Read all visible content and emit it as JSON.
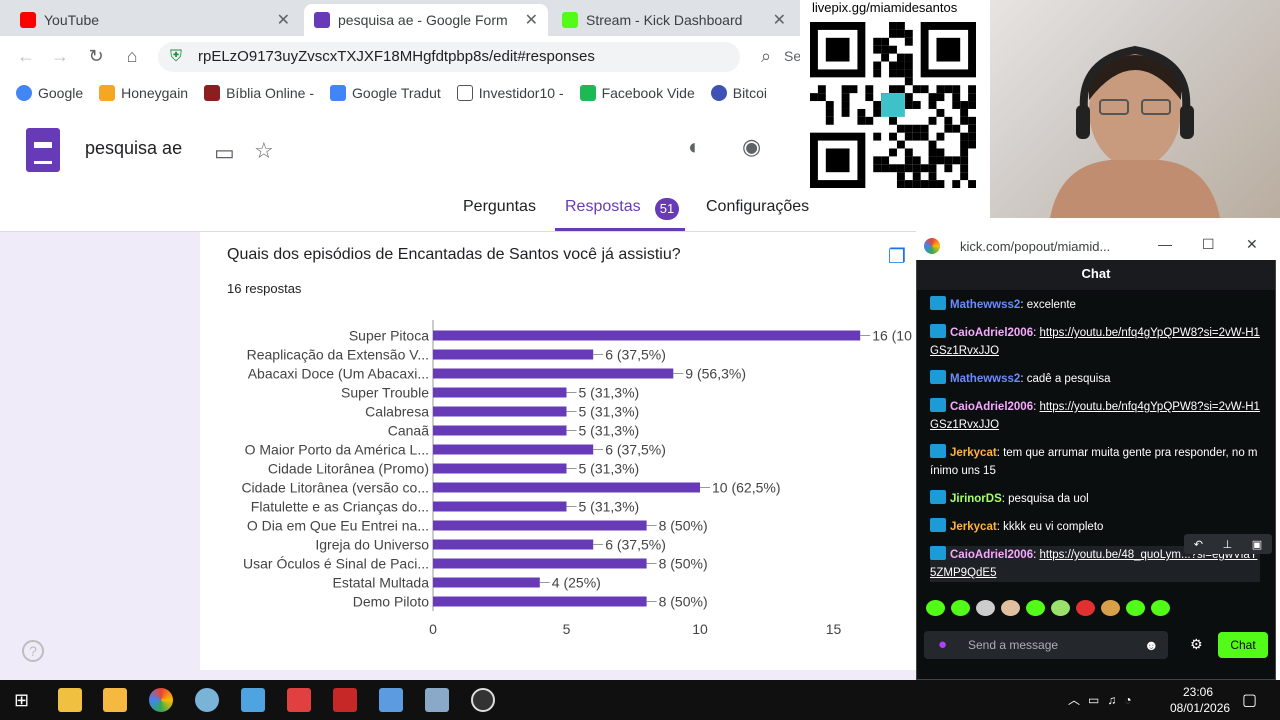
{
  "browser": {
    "tabs": [
      {
        "label": "YouTube",
        "color": "#ff0000"
      },
      {
        "label": "pesquisa ae - Google Form",
        "color": "#673ab7"
      },
      {
        "label": "Stream - Kick Dashboard",
        "color": "#53fc18"
      }
    ],
    "address": "rpELzO9173uyZvscxTXJXF18MHgfdtpbp8s/edit#responses",
    "search_stub": "Se",
    "bookmarks": [
      "Google",
      "Honeygain",
      "Bíblia Online -",
      "Google Tradut",
      "Investidor10 -",
      "Facebook Vide",
      "Bitcoi"
    ]
  },
  "form": {
    "title": "pesquisa ae",
    "tabs": {
      "questions": "Perguntas",
      "responses": "Respostas",
      "responses_count": "51",
      "settings": "Configurações"
    },
    "question": "Quais dos episódios de Encantadas de Santos você já assistiu?",
    "response_count": "16 respostas"
  },
  "chart_data": {
    "type": "bar",
    "orientation": "horizontal",
    "categories": [
      "Super Pitoca",
      "Reaplicação da Extensão V...",
      "Abacaxi Doce (Um Abacaxi...",
      "Super Trouble",
      "Calabresa",
      "Canaã",
      "O Maior Porto da América L...",
      "Cidade Litorânea (Promo)",
      "Cidade Litorânea (versão co...",
      "Flatulette e as Crianças do...",
      "O Dia em Que Eu Entrei na...",
      "Igreja do Universo",
      "Usar Óculos é Sinal de Paci...",
      "Estatal Multada",
      "Demo Piloto"
    ],
    "values": [
      16,
      6,
      9,
      5,
      5,
      5,
      6,
      5,
      10,
      5,
      8,
      6,
      8,
      4,
      8
    ],
    "labels": [
      "16 (10",
      "6 (37,5%)",
      "9 (56,3%)",
      "5 (31,3%)",
      "5 (31,3%)",
      "5 (31,3%)",
      "6 (37,5%)",
      "5 (31,3%)",
      "10 (62,5%)",
      "5 (31,3%)",
      "8 (50%)",
      "6 (37,5%)",
      "8 (50%)",
      "4 (25%)",
      "8 (50%)"
    ],
    "xticks": [
      "0",
      "5",
      "10",
      "15"
    ],
    "xlim": [
      0,
      16
    ],
    "color": "#673ab7"
  },
  "overlay": {
    "qr_label": "livepix.gg/miamidesantos"
  },
  "kick": {
    "popout_url": "kick.com/popout/miamid...",
    "chat_title": "Chat",
    "messages": [
      {
        "user": "Mathewwss2",
        "color": "#6b8cff",
        "text": "excelente"
      },
      {
        "user": "CaioAdriel2006",
        "color": "#f7a8ff",
        "text": "https://youtu.be/nfq4gYpQPW8?si=2vW-H1GSz1RvxJJO",
        "link": true
      },
      {
        "user": "Mathewwss2",
        "color": "#6b8cff",
        "text": "cadê a pesquisa"
      },
      {
        "user": "CaioAdriel2006",
        "color": "#f7a8ff",
        "text": "https://youtu.be/nfq4gYpQPW8?si=2vW-H1GSz1RvxJJO",
        "link": true
      },
      {
        "user": "Jerkycat",
        "color": "#ffb23f",
        "text": "tem que arrumar muita gente pra responder, no mínimo uns 15"
      },
      {
        "user": "JirinorDS",
        "color": "#a6ff6b",
        "text": "pesquisa da uol"
      },
      {
        "user": "Jerkycat",
        "color": "#ffb23f",
        "text": "kkkk eu vi completo"
      },
      {
        "user": "CaioAdriel2006",
        "color": "#f7a8ff",
        "text": "https://youtu.be/48_quoLym...?si=egwVlaY5ZMP9QdE5",
        "link": true
      }
    ],
    "input_placeholder": "Send a message",
    "send_label": "Chat"
  },
  "taskbar": {
    "time": "23:06",
    "date": "08/01/2026"
  }
}
